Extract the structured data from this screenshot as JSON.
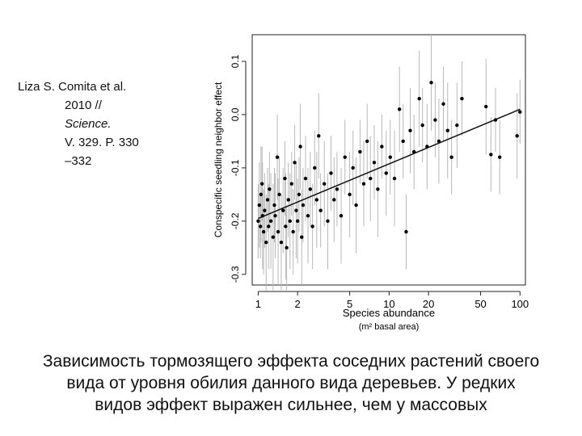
{
  "citation": {
    "line1": "Liza S. Comita et al.",
    "line2": "2010 //",
    "line3": "Science.",
    "line4": "V. 329. P. 330",
    "line5": "–332"
  },
  "caption": {
    "line1": "Зависимость тормозящего эффекта соседних растений своего",
    "line2": "вида от уровня обилия данного вида деревьев. У редких",
    "line3": "видов эффект выражен сильнее, чем у массовых"
  },
  "chart_data": {
    "type": "scatter",
    "xlabel": "Species abundance",
    "xlabel_sub": "(m² basal area)",
    "ylabel": "Conspecific seedling neighbor effect",
    "x_scale": "log",
    "xlim": [
      0.9,
      110
    ],
    "ylim": [
      -0.32,
      0.15
    ],
    "x_ticks": [
      1,
      2,
      5,
      10,
      20,
      50,
      100
    ],
    "x_tick_labels": [
      "1",
      "2",
      "5",
      "10",
      "20",
      "50",
      "100"
    ],
    "y_ticks": [
      -0.3,
      -0.2,
      -0.1,
      0.0,
      0.1
    ],
    "y_tick_labels": [
      "-0.3",
      "-0.2",
      "-0.1",
      "0.0",
      "0.1"
    ],
    "grid": false,
    "error_bar_color": "#b8b8b8",
    "point_color": "#000000",
    "trend_line": {
      "x": [
        1,
        100
      ],
      "y": [
        -0.195,
        0.01
      ]
    },
    "points": [
      {
        "x": 1.0,
        "y": -0.2,
        "err": 0.07
      },
      {
        "x": 1.02,
        "y": -0.17,
        "err": 0.08
      },
      {
        "x": 1.04,
        "y": -0.21,
        "err": 0.06
      },
      {
        "x": 1.05,
        "y": -0.15,
        "err": 0.09
      },
      {
        "x": 1.07,
        "y": -0.13,
        "err": 0.07
      },
      {
        "x": 1.08,
        "y": -0.19,
        "err": 0.1
      },
      {
        "x": 1.1,
        "y": -0.22,
        "err": 0.08
      },
      {
        "x": 1.12,
        "y": -0.18,
        "err": 0.07
      },
      {
        "x": 1.15,
        "y": -0.24,
        "err": 0.09
      },
      {
        "x": 1.18,
        "y": -0.16,
        "err": 0.06
      },
      {
        "x": 1.2,
        "y": -0.21,
        "err": 0.08
      },
      {
        "x": 1.22,
        "y": -0.14,
        "err": 0.07
      },
      {
        "x": 1.25,
        "y": -0.2,
        "err": 0.09
      },
      {
        "x": 1.3,
        "y": -0.23,
        "err": 0.1
      },
      {
        "x": 1.33,
        "y": -0.17,
        "err": 0.07
      },
      {
        "x": 1.35,
        "y": -0.19,
        "err": 0.08
      },
      {
        "x": 1.4,
        "y": -0.08,
        "err": 0.08
      },
      {
        "x": 1.42,
        "y": -0.22,
        "err": 0.1
      },
      {
        "x": 1.45,
        "y": -0.15,
        "err": 0.07
      },
      {
        "x": 1.5,
        "y": -0.24,
        "err": 0.09
      },
      {
        "x": 1.55,
        "y": -0.18,
        "err": 0.08
      },
      {
        "x": 1.6,
        "y": -0.12,
        "err": 0.07
      },
      {
        "x": 1.62,
        "y": -0.21,
        "err": 0.1
      },
      {
        "x": 1.65,
        "y": -0.25,
        "err": 0.08
      },
      {
        "x": 1.7,
        "y": -0.16,
        "err": 0.07
      },
      {
        "x": 1.75,
        "y": -0.2,
        "err": 0.09
      },
      {
        "x": 1.8,
        "y": -0.13,
        "err": 0.06
      },
      {
        "x": 1.85,
        "y": -0.22,
        "err": 0.08
      },
      {
        "x": 1.9,
        "y": -0.09,
        "err": 0.07
      },
      {
        "x": 1.95,
        "y": -0.18,
        "err": 0.09
      },
      {
        "x": 2.0,
        "y": -0.2,
        "err": 0.08
      },
      {
        "x": 2.05,
        "y": -0.15,
        "err": 0.07
      },
      {
        "x": 2.1,
        "y": -0.06,
        "err": 0.08
      },
      {
        "x": 2.15,
        "y": -0.23,
        "err": 0.09
      },
      {
        "x": 2.2,
        "y": -0.17,
        "err": 0.07
      },
      {
        "x": 2.3,
        "y": -0.12,
        "err": 0.08
      },
      {
        "x": 2.4,
        "y": -0.19,
        "err": 0.09
      },
      {
        "x": 2.5,
        "y": -0.14,
        "err": 0.07
      },
      {
        "x": 2.6,
        "y": -0.21,
        "err": 0.08
      },
      {
        "x": 2.7,
        "y": -0.1,
        "err": 0.07
      },
      {
        "x": 2.8,
        "y": -0.16,
        "err": 0.09
      },
      {
        "x": 2.9,
        "y": -0.04,
        "err": 0.08
      },
      {
        "x": 3.0,
        "y": -0.18,
        "err": 0.07
      },
      {
        "x": 3.2,
        "y": -0.13,
        "err": 0.08
      },
      {
        "x": 3.4,
        "y": -0.2,
        "err": 0.09
      },
      {
        "x": 3.6,
        "y": -0.11,
        "err": 0.07
      },
      {
        "x": 3.8,
        "y": -0.16,
        "err": 0.08
      },
      {
        "x": 4.0,
        "y": -0.14,
        "err": 0.07
      },
      {
        "x": 4.3,
        "y": -0.19,
        "err": 0.09
      },
      {
        "x": 4.6,
        "y": -0.08,
        "err": 0.07
      },
      {
        "x": 5.0,
        "y": -0.15,
        "err": 0.08
      },
      {
        "x": 5.3,
        "y": -0.1,
        "err": 0.07
      },
      {
        "x": 5.6,
        "y": -0.17,
        "err": 0.09
      },
      {
        "x": 6.0,
        "y": -0.07,
        "err": 0.06
      },
      {
        "x": 6.4,
        "y": -0.13,
        "err": 0.08
      },
      {
        "x": 6.8,
        "y": -0.05,
        "err": 0.07
      },
      {
        "x": 7.2,
        "y": -0.12,
        "err": 0.08
      },
      {
        "x": 7.7,
        "y": -0.09,
        "err": 0.07
      },
      {
        "x": 8.2,
        "y": -0.14,
        "err": 0.09
      },
      {
        "x": 8.8,
        "y": -0.06,
        "err": 0.06
      },
      {
        "x": 9.5,
        "y": -0.11,
        "err": 0.08
      },
      {
        "x": 10.2,
        "y": -0.08,
        "err": 0.07
      },
      {
        "x": 11.0,
        "y": -0.12,
        "err": 0.09
      },
      {
        "x": 12.0,
        "y": 0.01,
        "err": 0.08
      },
      {
        "x": 12.8,
        "y": -0.05,
        "err": 0.07
      },
      {
        "x": 13.5,
        "y": -0.22,
        "err": 0.07
      },
      {
        "x": 14.5,
        "y": -0.03,
        "err": 0.08
      },
      {
        "x": 15.5,
        "y": -0.07,
        "err": 0.07
      },
      {
        "x": 17.0,
        "y": 0.03,
        "err": 0.09
      },
      {
        "x": 18.0,
        "y": -0.02,
        "err": 0.07
      },
      {
        "x": 19.5,
        "y": -0.06,
        "err": 0.08
      },
      {
        "x": 21.0,
        "y": 0.06,
        "err": 0.09
      },
      {
        "x": 22.5,
        "y": -0.01,
        "err": 0.07
      },
      {
        "x": 24.0,
        "y": -0.05,
        "err": 0.08
      },
      {
        "x": 26.0,
        "y": 0.02,
        "err": 0.07
      },
      {
        "x": 28.0,
        "y": -0.03,
        "err": 0.09
      },
      {
        "x": 30.0,
        "y": -0.08,
        "err": 0.07
      },
      {
        "x": 33.0,
        "y": -0.02,
        "err": 0.08
      },
      {
        "x": 36.0,
        "y": 0.03,
        "err": 0.07
      },
      {
        "x": 55.0,
        "y": 0.015,
        "err": 0.09
      },
      {
        "x": 60.0,
        "y": -0.075,
        "err": 0.07
      },
      {
        "x": 65.0,
        "y": -0.01,
        "err": 0.06
      },
      {
        "x": 70.0,
        "y": -0.08,
        "err": 0.07
      },
      {
        "x": 95.0,
        "y": -0.04,
        "err": 0.08
      },
      {
        "x": 100.0,
        "y": 0.005,
        "err": 0.06
      }
    ]
  }
}
